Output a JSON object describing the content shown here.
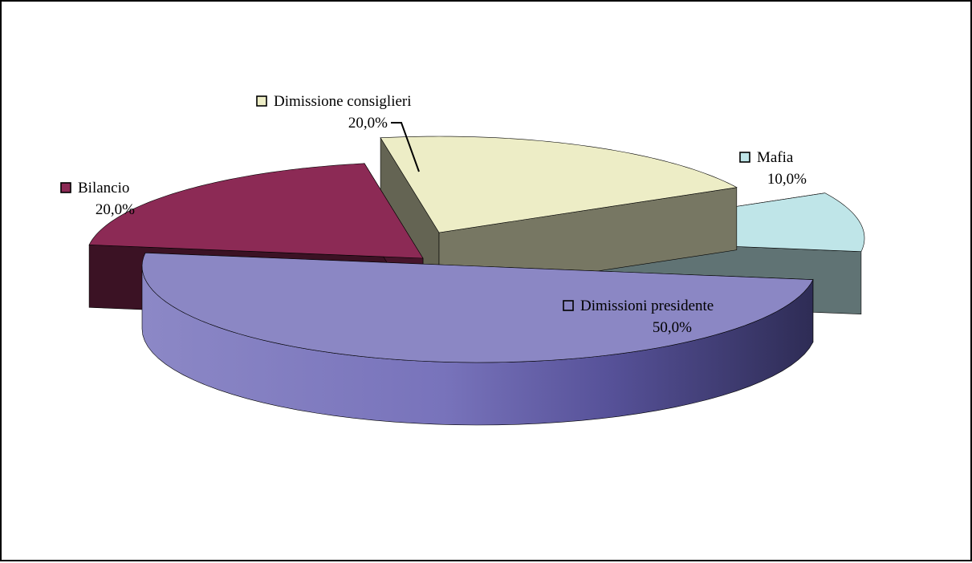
{
  "chart_data": {
    "type": "pie",
    "style": "3d-exploded",
    "percent_format": "comma-decimal",
    "slices": [
      {
        "name": "Dimissioni presidente",
        "value": 50.0,
        "label": "50,0%",
        "color": "#8b87c4"
      },
      {
        "name": "Bilancio",
        "value": 20.0,
        "label": "20,0%",
        "color": "#8c2a55"
      },
      {
        "name": "Dimissione consiglieri",
        "value": 20.0,
        "label": "20,0%",
        "color": "#ededc6"
      },
      {
        "name": "Mafia",
        "value": 10.0,
        "label": "10,0%",
        "color": "#bfe5e8"
      }
    ]
  }
}
